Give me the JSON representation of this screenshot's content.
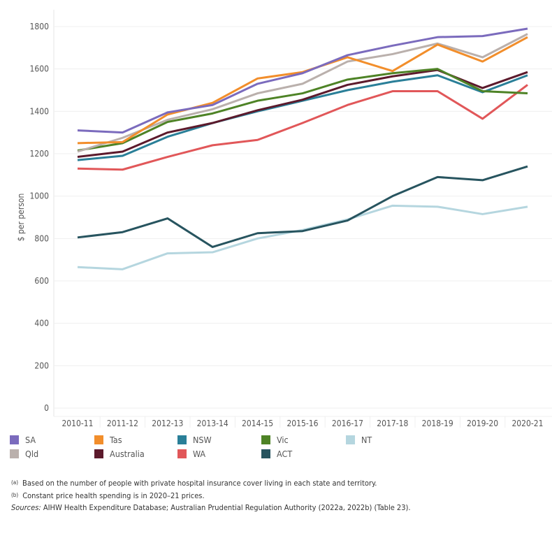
{
  "chart_data": {
    "type": "line",
    "ylabel": "$ per person",
    "xlabel": "",
    "ylim": [
      0,
      1800
    ],
    "yticks": [
      0,
      200,
      400,
      600,
      800,
      1000,
      1200,
      1400,
      1600,
      1800
    ],
    "grid": true,
    "legend_position": "bottom",
    "categories": [
      "2010-11",
      "2011-12",
      "2012-13",
      "2013-14",
      "2014-15",
      "2015-16",
      "2016-17",
      "2017-18",
      "2018-19",
      "2019-20",
      "2020-21"
    ],
    "series": [
      {
        "name": "SA",
        "color": "#7b6bbd",
        "values": [
          1310,
          1300,
          1395,
          1430,
          1530,
          1580,
          1665,
          1710,
          1750,
          1755,
          1790
        ]
      },
      {
        "name": "Tas",
        "color": "#f28e2b",
        "values": [
          1250,
          1255,
          1385,
          1440,
          1555,
          1585,
          1655,
          1590,
          1715,
          1635,
          1750
        ]
      },
      {
        "name": "NSW",
        "color": "#2a7f98",
        "values": [
          1170,
          1190,
          1280,
          1345,
          1400,
          1450,
          1500,
          1540,
          1570,
          1490,
          1570
        ]
      },
      {
        "name": "Vic",
        "color": "#4e8326",
        "values": [
          1215,
          1250,
          1350,
          1390,
          1450,
          1485,
          1550,
          1580,
          1600,
          1495,
          1485
        ]
      },
      {
        "name": "NT",
        "color": "#b5d6df",
        "values": [
          665,
          655,
          730,
          735,
          800,
          840,
          890,
          955,
          950,
          915,
          950
        ]
      },
      {
        "name": "Qld",
        "color": "#bab0ac",
        "values": [
          1210,
          1275,
          1360,
          1410,
          1485,
          1530,
          1635,
          1670,
          1720,
          1655,
          1765
        ]
      },
      {
        "name": "Australia",
        "color": "#5c1a2c",
        "values": [
          1185,
          1210,
          1300,
          1345,
          1405,
          1455,
          1525,
          1565,
          1595,
          1510,
          1585
        ]
      },
      {
        "name": "WA",
        "color": "#e15759",
        "values": [
          1130,
          1125,
          1185,
          1240,
          1265,
          1345,
          1430,
          1495,
          1495,
          1365,
          1525
        ]
      },
      {
        "name": "ACT",
        "color": "#27545f",
        "values": [
          805,
          830,
          895,
          760,
          825,
          835,
          885,
          1000,
          1090,
          1075,
          1140
        ]
      }
    ]
  },
  "notes": {
    "a_marker": "(a)",
    "a_text": "Based on the number of people with private hospital insurance cover living in each state and territory.",
    "b_marker": "(b)",
    "b_text": "Constant price health spending is in 2020–21 prices.",
    "sources_label": "Sources:",
    "sources_text": "AIHW Health Expenditure Database; Australian Prudential Regulation Authority (2022a, 2022b) (Table 23)."
  }
}
